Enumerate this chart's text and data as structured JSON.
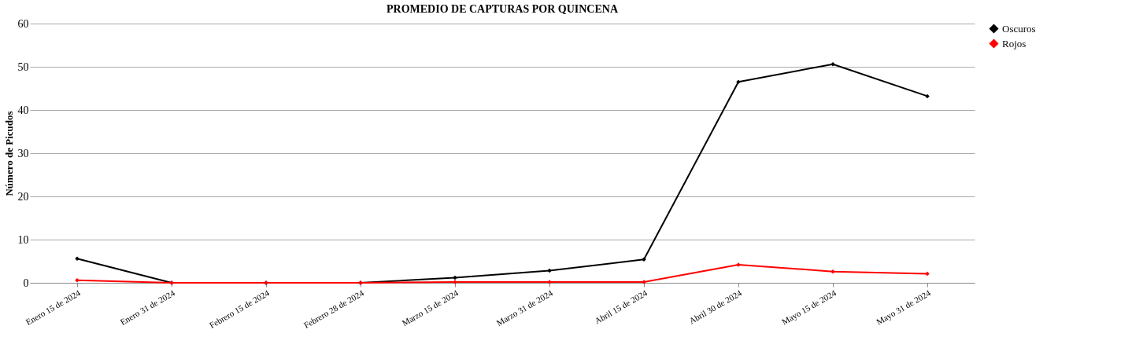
{
  "chart_data": {
    "type": "line",
    "title": "PROMEDIO DE CAPTURAS POR QUINCENA",
    "ylabel": "Número de Picudos",
    "categories": [
      "Enero 15 de 2024",
      "Enero 31 de 2024",
      "Febrero 15 de 2024",
      "Febrero 28 de 2024",
      "Marzo 15 de 2024",
      "Marzo 31 de 2024",
      "Abril 15 de 2024",
      "Abril 30 de 2024",
      "Mayo 15 de 2024",
      "Mayo 31 de 2024"
    ],
    "series": [
      {
        "name": "Oscuros",
        "color": "#000000",
        "values": [
          5.6,
          0,
          0,
          0,
          1.2,
          2.8,
          5.4,
          46.5,
          50.6,
          43.2
        ]
      },
      {
        "name": "Rojos",
        "color": "#ff0000",
        "values": [
          0.6,
          0,
          0,
          0,
          0.2,
          0.2,
          0.2,
          4.2,
          2.6,
          2.1
        ]
      }
    ],
    "ylim": [
      0,
      60
    ],
    "yticks": [
      0,
      10,
      20,
      30,
      40,
      50,
      60
    ],
    "grid": "y",
    "legend": "right",
    "marker": "diamond",
    "line_style": "solid"
  }
}
